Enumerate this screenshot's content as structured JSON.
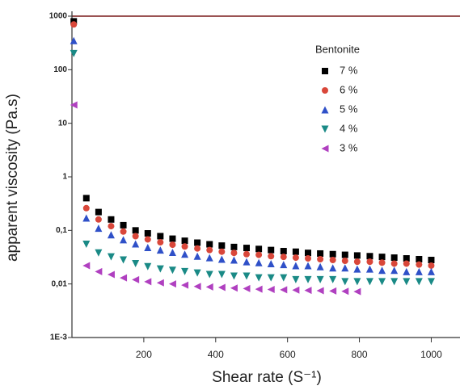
{
  "chart_data": {
    "type": "scatter",
    "x_label": "Shear rate (S⁻¹)",
    "y_label": "apparent viscosity (Pa.s)",
    "legend_title": "Bentonite",
    "log_y": true,
    "xlim": [
      0,
      1080
    ],
    "ylim": [
      0.001,
      1000
    ],
    "xticks": [
      200,
      400,
      600,
      800,
      1000
    ],
    "yticks": [
      {
        "value": 0.001,
        "label": "1E-3"
      },
      {
        "value": 0.01,
        "label": "0,01"
      },
      {
        "value": 0.1,
        "label": "0,1"
      },
      1,
      10,
      100,
      1000
    ],
    "x": [
      5,
      40,
      74,
      109,
      143,
      177,
      211,
      246,
      280,
      314,
      349,
      383,
      417,
      451,
      486,
      520,
      554,
      589,
      623,
      657,
      691,
      726,
      760,
      794,
      829,
      863,
      897,
      931,
      966,
      1000
    ],
    "series": [
      {
        "name": "7 %",
        "color": "#000000",
        "marker": "square",
        "values": [
          800,
          0.4,
          0.22,
          0.16,
          0.125,
          0.1,
          0.088,
          0.078,
          0.07,
          0.064,
          0.059,
          0.055,
          0.052,
          0.049,
          0.047,
          0.045,
          0.043,
          0.041,
          0.04,
          0.038,
          0.037,
          0.036,
          0.035,
          0.034,
          0.033,
          0.032,
          0.031,
          0.03,
          0.029,
          0.028
        ]
      },
      {
        "name": "6 %",
        "color": "#d9473a",
        "marker": "circle",
        "values": [
          700,
          0.26,
          0.16,
          0.12,
          0.095,
          0.078,
          0.068,
          0.06,
          0.054,
          0.05,
          0.046,
          0.043,
          0.04,
          0.038,
          0.036,
          0.035,
          0.033,
          0.032,
          0.031,
          0.03,
          0.029,
          0.028,
          0.027,
          0.026,
          0.026,
          0.025,
          0.024,
          0.024,
          0.023,
          0.022
        ]
      },
      {
        "name": "5 %",
        "color": "#2f50c8",
        "marker": "triangle-up",
        "values": [
          350,
          0.17,
          0.11,
          0.083,
          0.067,
          0.056,
          0.048,
          0.043,
          0.039,
          0.036,
          0.033,
          0.031,
          0.029,
          0.028,
          0.026,
          0.025,
          0.024,
          0.023,
          0.022,
          0.022,
          0.021,
          0.02,
          0.02,
          0.019,
          0.019,
          0.018,
          0.018,
          0.017,
          0.017,
          0.017
        ]
      },
      {
        "name": "4 %",
        "color": "#1a8a86",
        "marker": "triangle-down",
        "values": [
          200,
          0.055,
          0.038,
          0.032,
          0.028,
          0.024,
          0.021,
          0.019,
          0.018,
          0.017,
          0.016,
          0.015,
          0.015,
          0.014,
          0.014,
          0.013,
          0.013,
          0.013,
          0.012,
          0.012,
          0.012,
          0.012,
          0.011,
          0.011,
          0.011,
          0.011,
          0.011,
          0.011,
          0.011,
          0.011
        ]
      },
      {
        "name": "3 %",
        "color": "#b040c0",
        "marker": "triangle-left",
        "values": [
          22,
          0.022,
          0.017,
          0.015,
          0.013,
          0.012,
          0.011,
          0.0105,
          0.01,
          0.0095,
          0.009,
          0.0088,
          0.0086,
          0.0084,
          0.0082,
          0.008,
          0.0079,
          0.0078,
          0.0077,
          0.0076,
          0.0075,
          0.0074,
          0.0073,
          0.0072,
          null,
          null,
          null,
          null,
          null,
          null
        ]
      }
    ]
  }
}
